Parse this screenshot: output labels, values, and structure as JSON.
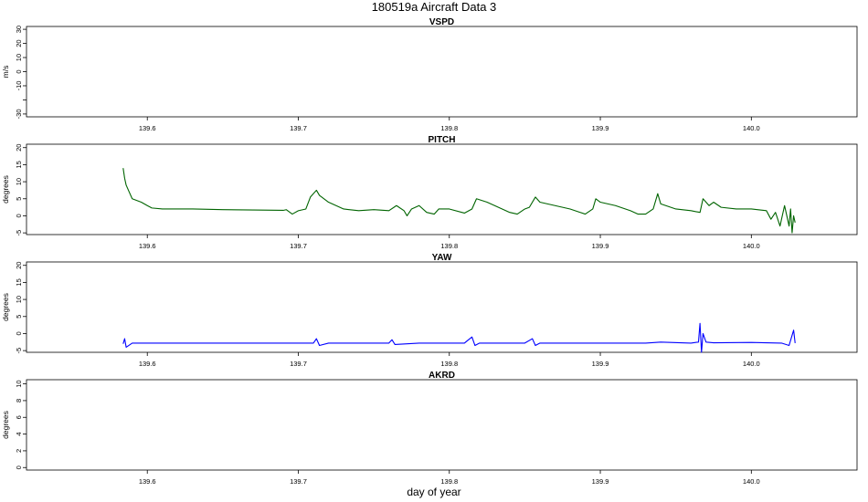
{
  "figure": {
    "title": "180519a   Aircraft Data 3",
    "xlabel": "day of year"
  },
  "chart_data": [
    {
      "type": "line",
      "title": "VSPD",
      "ylabel": "m/s",
      "xlim": [
        139.52,
        140.07
      ],
      "ylim": [
        -32,
        32
      ],
      "xticks": [
        139.6,
        139.7,
        139.8,
        139.9,
        140.0
      ],
      "xtick_labels": [
        "139.6",
        "139.7",
        "139.8",
        "139.9",
        "140.0"
      ],
      "yticks": [
        -30,
        -20,
        -10,
        0,
        10,
        20,
        30
      ],
      "ytick_labels": [
        "-30",
        "",
        "-10",
        "0",
        "10",
        "20",
        "30"
      ],
      "series": []
    },
    {
      "type": "line",
      "title": "PITCH",
      "ylabel": "degrees",
      "xlim": [
        139.52,
        140.07
      ],
      "ylim": [
        -5.5,
        21
      ],
      "xticks": [
        139.6,
        139.7,
        139.8,
        139.9,
        140.0
      ],
      "xtick_labels": [
        "139.6",
        "139.7",
        "139.8",
        "139.9",
        "140.0"
      ],
      "yticks": [
        -5,
        0,
        5,
        10,
        15,
        20
      ],
      "ytick_labels": [
        "-5",
        "0",
        "5",
        "10",
        "15",
        "20"
      ],
      "series": [
        {
          "color": "#006400",
          "x": [
            139.584,
            139.585,
            139.586,
            139.588,
            139.59,
            139.593,
            139.596,
            139.6,
            139.603,
            139.61,
            139.63,
            139.65,
            139.67,
            139.69,
            139.692,
            139.696,
            139.7,
            139.705,
            139.708,
            139.712,
            139.714,
            139.72,
            139.73,
            139.74,
            139.75,
            139.76,
            139.765,
            139.77,
            139.772,
            139.775,
            139.78,
            139.785,
            139.79,
            139.793,
            139.8,
            139.81,
            139.815,
            139.818,
            139.825,
            139.83,
            139.84,
            139.845,
            139.85,
            139.853,
            139.857,
            139.86,
            139.87,
            139.88,
            139.89,
            139.895,
            139.897,
            139.9,
            139.91,
            139.92,
            139.925,
            139.93,
            139.935,
            139.938,
            139.94,
            139.95,
            139.96,
            139.966,
            139.968,
            139.972,
            139.975,
            139.98,
            139.99,
            140.0,
            140.01,
            140.013,
            140.016,
            140.019,
            140.022,
            140.025,
            140.026,
            140.027,
            140.028,
            140.029
          ],
          "y": [
            14,
            11,
            9,
            7,
            5,
            4.5,
            4,
            3,
            2.3,
            2,
            2,
            1.8,
            1.7,
            1.6,
            1.8,
            0.5,
            1.5,
            2,
            5.5,
            7.5,
            6,
            4,
            2,
            1.5,
            1.8,
            1.5,
            3,
            1.5,
            0,
            2,
            3,
            1,
            0.5,
            2,
            2,
            0.8,
            2,
            5,
            4,
            3,
            1,
            0.5,
            2,
            2.5,
            5.5,
            4,
            3,
            2,
            0.5,
            2,
            5,
            4,
            3,
            1.5,
            0.5,
            0.5,
            2,
            6.5,
            3.5,
            2,
            1.5,
            1,
            5,
            3,
            4,
            2.5,
            2,
            2,
            1.5,
            -1,
            1,
            -3,
            3,
            -3,
            2,
            -5,
            0,
            -2
          ]
        }
      ]
    },
    {
      "type": "line",
      "title": "YAW",
      "ylabel": "degrees",
      "xlim": [
        139.52,
        140.07
      ],
      "ylim": [
        -5.5,
        21
      ],
      "xticks": [
        139.6,
        139.7,
        139.8,
        139.9,
        140.0
      ],
      "xtick_labels": [
        "139.6",
        "139.7",
        "139.8",
        "139.9",
        "140.0"
      ],
      "yticks": [
        -5,
        0,
        5,
        10,
        15,
        20
      ],
      "ytick_labels": [
        "-5",
        "0",
        "5",
        "10",
        "15",
        "20"
      ],
      "series": [
        {
          "color": "#0000ff",
          "x": [
            139.584,
            139.585,
            139.586,
            139.59,
            139.6,
            139.65,
            139.7,
            139.71,
            139.712,
            139.714,
            139.72,
            139.75,
            139.76,
            139.762,
            139.764,
            139.78,
            139.81,
            139.815,
            139.817,
            139.82,
            139.85,
            139.855,
            139.857,
            139.86,
            139.89,
            139.9,
            139.93,
            139.94,
            139.96,
            139.965,
            139.966,
            139.967,
            139.968,
            139.97,
            139.975,
            140.0,
            140.02,
            140.025,
            140.027,
            140.028,
            140.029
          ],
          "y": [
            -3,
            -1.5,
            -4,
            -2.8,
            -2.8,
            -2.8,
            -2.8,
            -2.8,
            -1.5,
            -3.5,
            -2.8,
            -2.8,
            -2.8,
            -1.8,
            -3.2,
            -2.8,
            -2.8,
            -1,
            -3.5,
            -2.8,
            -2.8,
            -1.5,
            -3.5,
            -2.8,
            -2.8,
            -2.8,
            -2.8,
            -2.5,
            -2.8,
            -2.5,
            3,
            -5.5,
            0,
            -2.5,
            -2.7,
            -2.6,
            -2.8,
            -3.5,
            -0.5,
            1,
            -2.8
          ]
        }
      ]
    },
    {
      "type": "line",
      "title": "AKRD",
      "ylabel": "degrees",
      "xlim": [
        139.52,
        140.07
      ],
      "ylim": [
        -0.3,
        10.5
      ],
      "xticks": [
        139.6,
        139.7,
        139.8,
        139.9,
        140.0
      ],
      "xtick_labels": [
        "139.6",
        "139.7",
        "139.8",
        "139.9",
        "140.0"
      ],
      "yticks": [
        0,
        2,
        4,
        6,
        8,
        10
      ],
      "ytick_labels": [
        "0",
        "2",
        "4",
        "6",
        "8",
        "10"
      ],
      "series": []
    }
  ]
}
